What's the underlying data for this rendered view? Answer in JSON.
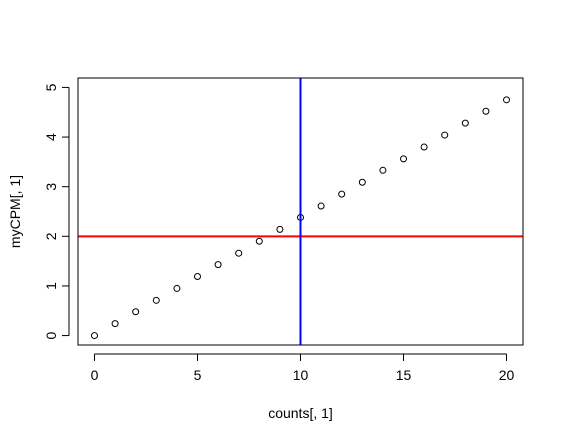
{
  "chart_data": {
    "type": "scatter",
    "title": "",
    "xlabel": "counts[, 1]",
    "ylabel": "myCPM[, 1]",
    "xlim": [
      -0.8,
      20.8
    ],
    "ylim": [
      -0.19,
      5.19
    ],
    "x_ticks": [
      0,
      5,
      10,
      15,
      20
    ],
    "y_ticks": [
      0,
      1,
      2,
      3,
      4,
      5
    ],
    "x_tick_labels": [
      "0",
      "5",
      "10",
      "15",
      "20"
    ],
    "y_tick_labels": [
      "0",
      "1",
      "2",
      "3",
      "4",
      "5"
    ],
    "grid": false,
    "series": [
      {
        "marker": "open-circle",
        "color": "#000000",
        "x": [
          0,
          1,
          2,
          3,
          4,
          5,
          6,
          7,
          8,
          9,
          10,
          11,
          12,
          13,
          14,
          15,
          16,
          17,
          18,
          19,
          20
        ],
        "y": [
          0,
          0.24,
          0.48,
          0.71,
          0.95,
          1.19,
          1.43,
          1.66,
          1.9,
          2.14,
          2.38,
          2.61,
          2.85,
          3.09,
          3.33,
          3.56,
          3.8,
          4.04,
          4.28,
          4.52,
          4.75
        ]
      }
    ],
    "reference_lines": [
      {
        "orientation": "horizontal",
        "value": 2,
        "color": "#ff0000"
      },
      {
        "orientation": "vertical",
        "value": 10,
        "color": "#0000ff"
      }
    ]
  }
}
